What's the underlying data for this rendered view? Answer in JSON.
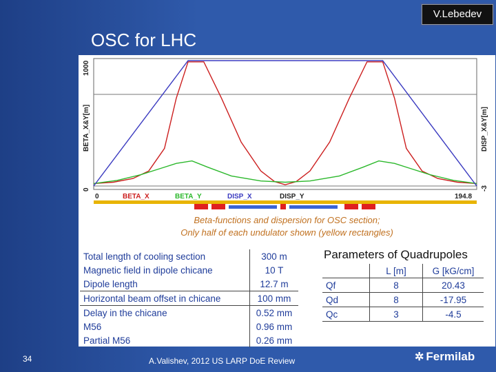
{
  "header": {
    "badge": "V.Lebedev",
    "title": "OSC for LHC"
  },
  "chart_data": {
    "type": "line",
    "ylabel_left": "BETA_X&Y[m]",
    "ylabel_right": "DISP_X&Y[m]",
    "y_left_ticks": [
      "1000",
      "0"
    ],
    "y_right_ticks": [
      "",
      "-3"
    ],
    "x_ticks": [
      "0",
      "194.8"
    ],
    "xlim": [
      0,
      194.8
    ],
    "ylim_left": [
      0,
      1000
    ],
    "legend": [
      "BETA_X",
      "BETA_Y",
      "DISP_X",
      "DISP_Y"
    ],
    "series": [
      {
        "name": "BETA_X",
        "color": "#cc1f1f",
        "x": [
          0,
          10,
          20,
          28,
          36,
          42,
          48,
          56,
          65,
          75,
          85,
          92,
          97.4,
          103,
          110,
          120,
          130,
          139,
          147,
          153,
          159,
          167,
          175,
          185,
          194.8
        ],
        "y": [
          20,
          30,
          60,
          120,
          300,
          700,
          990,
          990,
          700,
          350,
          120,
          35,
          10,
          35,
          120,
          350,
          700,
          990,
          990,
          700,
          300,
          120,
          60,
          30,
          20
        ]
      },
      {
        "name": "BETA_Y",
        "color": "#2bb82b",
        "x": [
          0,
          12,
          24,
          34,
          42,
          50,
          58,
          70,
          85,
          97.4,
          110,
          125,
          137,
          145,
          153,
          161,
          171,
          183,
          194.8
        ],
        "y": [
          20,
          45,
          90,
          140,
          180,
          200,
          150,
          80,
          40,
          30,
          40,
          80,
          150,
          200,
          180,
          140,
          90,
          45,
          20
        ]
      },
      {
        "name": "DISP_X",
        "color": "#3a3ac0",
        "x": [
          0,
          48,
          65,
          130,
          147,
          194.8
        ],
        "y": [
          0,
          -3,
          -3,
          -3,
          -3,
          0
        ]
      }
    ],
    "ring_elements": [
      {
        "type": "yellow_bar"
      }
    ]
  },
  "captions": [
    "Beta-functions and dispersion for OSC section;",
    "Only half of each undulator shown (yellow rectangles)"
  ],
  "params_left": [
    {
      "label": "Total length of cooling section",
      "value": "300 m"
    },
    {
      "label": "Magnetic field in dipole chicane",
      "value": "10 T"
    },
    {
      "label": "Dipole length",
      "value": "12.7 m"
    },
    {
      "label": "Horizontal beam offset in chicane",
      "value": "100 mm"
    },
    {
      "label": "Delay in the chicane",
      "value": "0.52 mm"
    },
    {
      "label": "M56",
      "value": "0.96 mm"
    },
    {
      "label": "Partial M56",
      "value": "0.26 mm"
    }
  ],
  "quad": {
    "title": "Parameters of Quadrupoles",
    "headers": [
      "",
      "L [m]",
      "G [kG/cm]"
    ],
    "rows": [
      [
        "Qf",
        "8",
        "20.43"
      ],
      [
        "Qd",
        "8",
        "-17.95"
      ],
      [
        "Qc",
        "3",
        "-4.5"
      ]
    ]
  },
  "footer": {
    "page": "34",
    "text": "A.Valishev, 2012 US LARP DoE Review",
    "logo": "Fermilab"
  }
}
